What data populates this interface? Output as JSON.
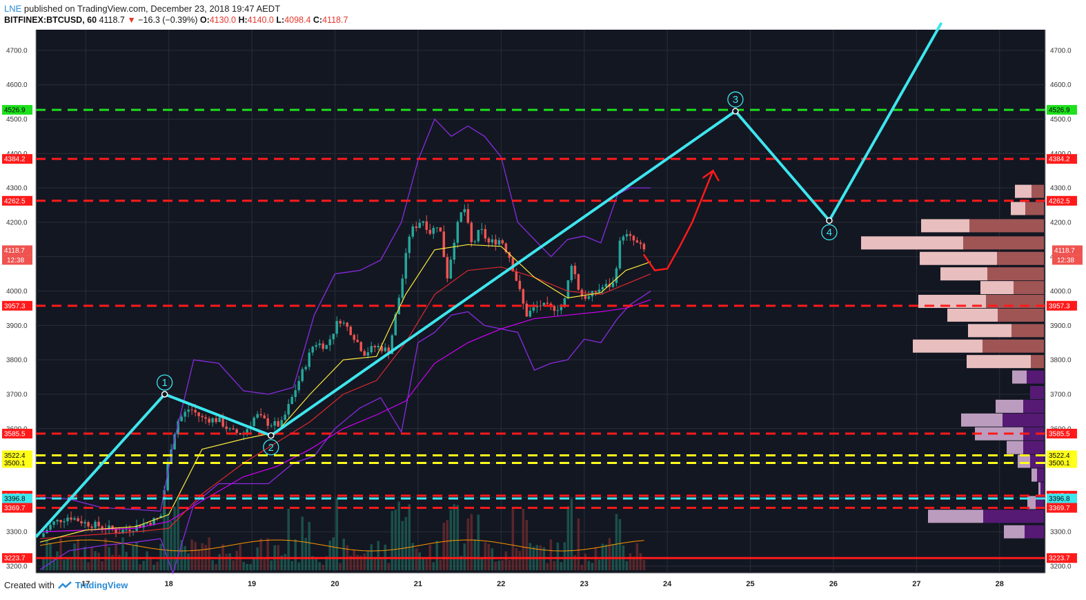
{
  "header": {
    "author": "LNE",
    "published": "published on TradingView.com, December 23, 2018 19:47 AEDT",
    "symbol": "BITFINEX:BTCUSD, 60",
    "last": "4118.7",
    "change": "−16.3 (−0.39%)",
    "o_label": "O:",
    "o": "4130.0",
    "h_label": "H:",
    "h": "4140.0",
    "l_label": "L:",
    "l": "4098.4",
    "c_label": "C:",
    "c": "4118.7"
  },
  "footer": {
    "created": "Created with",
    "brand": "TradingView"
  },
  "colors": {
    "background": "#131722",
    "grid": "#2a2e39",
    "up": "#26a69a",
    "down": "#ef5350",
    "wave": "#3ee6ee",
    "resistance": "#ff1a1a",
    "target": "#1ee01e",
    "support_yellow": "#ffff1a",
    "bollinger": "#8a2be2",
    "ema_fast": "#ffeb3b",
    "ema_mid": "#e0282e",
    "ema_slow": "#d500f9",
    "volume_ma": "#ff9800"
  },
  "chart_data": {
    "type": "candlestick",
    "ylim": [
      3180,
      4760
    ],
    "y_ticks": [
      3200,
      3300,
      3400,
      3500,
      3600,
      3700,
      3800,
      3900,
      4000,
      4100,
      4200,
      4300,
      4400,
      4500,
      4600,
      4700
    ],
    "y_tick_labels": [
      "3200.0",
      "3300.0",
      "3400.0",
      "3500.0",
      "3600.0",
      "3700.0",
      "3800.0",
      "3900.0",
      "4000.0",
      "4100.0",
      "4200.0",
      "4300.0",
      "4400.0",
      "4500.0",
      "4600.0",
      "4700.0"
    ],
    "xlim": [
      16.4,
      28.55
    ],
    "x_ticks": [
      17,
      18,
      19,
      20,
      21,
      22,
      23,
      24,
      25,
      26,
      27,
      28
    ],
    "x_tick_labels": [
      "17",
      "18",
      "19",
      "20",
      "21",
      "22",
      "23",
      "24",
      "25",
      "26",
      "27",
      "28"
    ],
    "horizontal_levels": [
      {
        "value": 4526.9,
        "label": "4526.9",
        "style": "dashed",
        "role": "target"
      },
      {
        "value": 4384.2,
        "label": "4384.2",
        "style": "dashed",
        "role": "resistance"
      },
      {
        "value": 4262.5,
        "label": "4262.5",
        "style": "dashed",
        "role": "resistance"
      },
      {
        "value": 3957.3,
        "label": "3957.3",
        "style": "dashed",
        "role": "resistance"
      },
      {
        "value": 3585.5,
        "label": "3585.5",
        "style": "dashed",
        "role": "resistance"
      },
      {
        "value": 3522.4,
        "label": "3522.4",
        "style": "dashed",
        "role": "support_yellow"
      },
      {
        "value": 3500.1,
        "label": "3500.1",
        "style": "dashed",
        "role": "support_yellow"
      },
      {
        "value": 3405.1,
        "label": "3405.1",
        "style": "dashed",
        "role": "resistance"
      },
      {
        "value": 3396.8,
        "label": "3396.8",
        "style": "dashed",
        "role": "wave"
      },
      {
        "value": 3369.7,
        "label": "3369.7",
        "style": "dashed",
        "role": "resistance"
      },
      {
        "value": 3223.7,
        "label": "3223.7",
        "style": "solid",
        "role": "resistance"
      }
    ],
    "last_price": {
      "value": 4118.7,
      "label": "4118.7",
      "countdown": "12:38"
    },
    "wave_count": [
      {
        "label": "",
        "x": 16.4,
        "y": 3285
      },
      {
        "label": "1",
        "x": 17.95,
        "y": 3700
      },
      {
        "label": "2",
        "x": 19.23,
        "y": 3580
      },
      {
        "label": "3",
        "x": 24.82,
        "y": 4523
      },
      {
        "label": "4",
        "x": 25.95,
        "y": 4205
      },
      {
        "label": "",
        "x": 27.3,
        "y": 4780
      }
    ],
    "projection_arrow": [
      [
        23.72,
        4105
      ],
      [
        23.85,
        4060
      ],
      [
        24.0,
        4065
      ],
      [
        24.15,
        4130
      ],
      [
        24.3,
        4200
      ],
      [
        24.45,
        4290
      ],
      [
        24.55,
        4350
      ]
    ],
    "price_path": [
      [
        16.45,
        3285
      ],
      [
        16.6,
        3325
      ],
      [
        16.8,
        3345
      ],
      [
        17.0,
        3325
      ],
      [
        17.2,
        3315
      ],
      [
        17.4,
        3300
      ],
      [
        17.6,
        3315
      ],
      [
        17.9,
        3340
      ],
      [
        18.0,
        3520
      ],
      [
        18.1,
        3620
      ],
      [
        18.25,
        3660
      ],
      [
        18.4,
        3630
      ],
      [
        18.6,
        3625
      ],
      [
        18.75,
        3590
      ],
      [
        18.9,
        3585
      ],
      [
        19.05,
        3640
      ],
      [
        19.2,
        3615
      ],
      [
        19.35,
        3610
      ],
      [
        19.5,
        3700
      ],
      [
        19.6,
        3760
      ],
      [
        19.75,
        3850
      ],
      [
        19.9,
        3840
      ],
      [
        20.05,
        3920
      ],
      [
        20.2,
        3880
      ],
      [
        20.35,
        3820
      ],
      [
        20.5,
        3840
      ],
      [
        20.65,
        3825
      ],
      [
        20.8,
        4020
      ],
      [
        20.9,
        4170
      ],
      [
        21.05,
        4210
      ],
      [
        21.15,
        4170
      ],
      [
        21.25,
        4200
      ],
      [
        21.35,
        4040
      ],
      [
        21.45,
        4170
      ],
      [
        21.55,
        4250
      ],
      [
        21.65,
        4130
      ],
      [
        21.75,
        4180
      ],
      [
        21.85,
        4140
      ],
      [
        22.0,
        4150
      ],
      [
        22.1,
        4100
      ],
      [
        22.2,
        4020
      ],
      [
        22.3,
        3930
      ],
      [
        22.45,
        3960
      ],
      [
        22.6,
        3950
      ],
      [
        22.75,
        3955
      ],
      [
        22.85,
        4085
      ],
      [
        22.95,
        3990
      ],
      [
        23.05,
        3980
      ],
      [
        23.2,
        4010
      ],
      [
        23.35,
        4020
      ],
      [
        23.45,
        4170
      ],
      [
        23.6,
        4145
      ],
      [
        23.72,
        4118.7
      ]
    ],
    "bb_upper": [
      [
        16.45,
        3400
      ],
      [
        16.8,
        3395
      ],
      [
        17.2,
        3370
      ],
      [
        17.6,
        3365
      ],
      [
        17.9,
        3360
      ],
      [
        18.05,
        3550
      ],
      [
        18.3,
        3800
      ],
      [
        18.6,
        3790
      ],
      [
        18.9,
        3710
      ],
      [
        19.2,
        3700
      ],
      [
        19.5,
        3720
      ],
      [
        19.75,
        3930
      ],
      [
        20.0,
        4050
      ],
      [
        20.3,
        4060
      ],
      [
        20.55,
        4090
      ],
      [
        20.8,
        4200
      ],
      [
        21.0,
        4380
      ],
      [
        21.2,
        4500
      ],
      [
        21.4,
        4450
      ],
      [
        21.6,
        4480
      ],
      [
        21.8,
        4450
      ],
      [
        22.0,
        4390
      ],
      [
        22.2,
        4200
      ],
      [
        22.4,
        4150
      ],
      [
        22.6,
        4100
      ],
      [
        22.8,
        4150
      ],
      [
        23.0,
        4160
      ],
      [
        23.2,
        4140
      ],
      [
        23.4,
        4280
      ],
      [
        23.55,
        4300
      ],
      [
        23.8,
        4300
      ]
    ],
    "bb_lower": [
      [
        16.45,
        3190
      ],
      [
        16.8,
        3245
      ],
      [
        17.2,
        3260
      ],
      [
        17.6,
        3270
      ],
      [
        17.9,
        3280
      ],
      [
        18.05,
        3180
      ],
      [
        18.3,
        3380
      ],
      [
        18.6,
        3440
      ],
      [
        18.9,
        3440
      ],
      [
        19.2,
        3440
      ],
      [
        19.5,
        3500
      ],
      [
        19.75,
        3520
      ],
      [
        20.0,
        3600
      ],
      [
        20.3,
        3660
      ],
      [
        20.55,
        3690
      ],
      [
        20.8,
        3590
      ],
      [
        21.0,
        3850
      ],
      [
        21.2,
        3880
      ],
      [
        21.4,
        3930
      ],
      [
        21.6,
        3940
      ],
      [
        21.8,
        3900
      ],
      [
        22.0,
        3890
      ],
      [
        22.2,
        3880
      ],
      [
        22.4,
        3770
      ],
      [
        22.6,
        3790
      ],
      [
        22.8,
        3800
      ],
      [
        23.0,
        3860
      ],
      [
        23.2,
        3850
      ],
      [
        23.4,
        3920
      ],
      [
        23.55,
        3960
      ],
      [
        23.8,
        4000
      ]
    ],
    "ema_fast": [
      [
        16.45,
        3270
      ],
      [
        17.0,
        3305
      ],
      [
        17.6,
        3315
      ],
      [
        18.0,
        3350
      ],
      [
        18.4,
        3540
      ],
      [
        18.9,
        3570
      ],
      [
        19.3,
        3590
      ],
      [
        19.7,
        3700
      ],
      [
        20.1,
        3800
      ],
      [
        20.5,
        3810
      ],
      [
        20.85,
        3990
      ],
      [
        21.2,
        4120
      ],
      [
        21.6,
        4135
      ],
      [
        22.0,
        4130
      ],
      [
        22.4,
        4040
      ],
      [
        22.8,
        3980
      ],
      [
        23.2,
        3995
      ],
      [
        23.5,
        4060
      ],
      [
        23.8,
        4085
      ]
    ],
    "ema_mid": [
      [
        16.45,
        3280
      ],
      [
        17.0,
        3290
      ],
      [
        17.6,
        3300
      ],
      [
        18.0,
        3310
      ],
      [
        18.4,
        3410
      ],
      [
        18.9,
        3500
      ],
      [
        19.3,
        3560
      ],
      [
        19.7,
        3620
      ],
      [
        20.1,
        3700
      ],
      [
        20.5,
        3740
      ],
      [
        20.85,
        3850
      ],
      [
        21.2,
        3990
      ],
      [
        21.6,
        4060
      ],
      [
        22.0,
        4070
      ],
      [
        22.4,
        4040
      ],
      [
        22.8,
        4000
      ],
      [
        23.2,
        3990
      ],
      [
        23.5,
        4020
      ],
      [
        23.8,
        4050
      ]
    ],
    "ema_slow": [
      [
        16.45,
        3300
      ],
      [
        17.0,
        3305
      ],
      [
        17.6,
        3310
      ],
      [
        18.0,
        3330
      ],
      [
        18.4,
        3390
      ],
      [
        18.9,
        3460
      ],
      [
        19.3,
        3490
      ],
      [
        19.7,
        3540
      ],
      [
        20.1,
        3600
      ],
      [
        20.5,
        3640
      ],
      [
        20.85,
        3680
      ],
      [
        21.2,
        3790
      ],
      [
        21.6,
        3850
      ],
      [
        22.0,
        3890
      ],
      [
        22.4,
        3920
      ],
      [
        22.8,
        3930
      ],
      [
        23.2,
        3940
      ],
      [
        23.5,
        3950
      ],
      [
        23.8,
        3975
      ]
    ],
    "volume_profile": [
      {
        "price": 4290,
        "left": 42,
        "right": 18
      },
      {
        "price": 4240,
        "left": 48,
        "right": 27
      },
      {
        "price": 4190,
        "left": 178,
        "right": 108
      },
      {
        "price": 4140,
        "left": 265,
        "right": 117
      },
      {
        "price": 4095,
        "left": 180,
        "right": 68
      },
      {
        "price": 4050,
        "left": 150,
        "right": 82
      },
      {
        "price": 4010,
        "left": 92,
        "right": 44
      },
      {
        "price": 3970,
        "left": 182,
        "right": 84
      },
      {
        "price": 3930,
        "left": 140,
        "right": 67
      },
      {
        "price": 3885,
        "left": 110,
        "right": 47
      },
      {
        "price": 3840,
        "left": 190,
        "right": 89
      },
      {
        "price": 3795,
        "left": 112,
        "right": 19
      },
      {
        "price": 3750,
        "left": 46,
        "right": 25
      },
      {
        "price": 3705,
        "left": 20,
        "right": 20
      },
      {
        "price": 3665,
        "left": 70,
        "right": 30
      },
      {
        "price": 3625,
        "left": 120,
        "right": 60
      },
      {
        "price": 3585,
        "left": 100,
        "right": 30
      },
      {
        "price": 3545,
        "left": 54,
        "right": 30
      },
      {
        "price": 3505,
        "left": 38,
        "right": 20
      },
      {
        "price": 3465,
        "left": 18,
        "right": 10
      },
      {
        "price": 3425,
        "left": 8,
        "right": 5
      },
      {
        "price": 3385,
        "left": 24,
        "right": 12
      },
      {
        "price": 3345,
        "left": 168,
        "right": 88
      },
      {
        "price": 3300,
        "left": 58,
        "right": 28
      }
    ]
  }
}
